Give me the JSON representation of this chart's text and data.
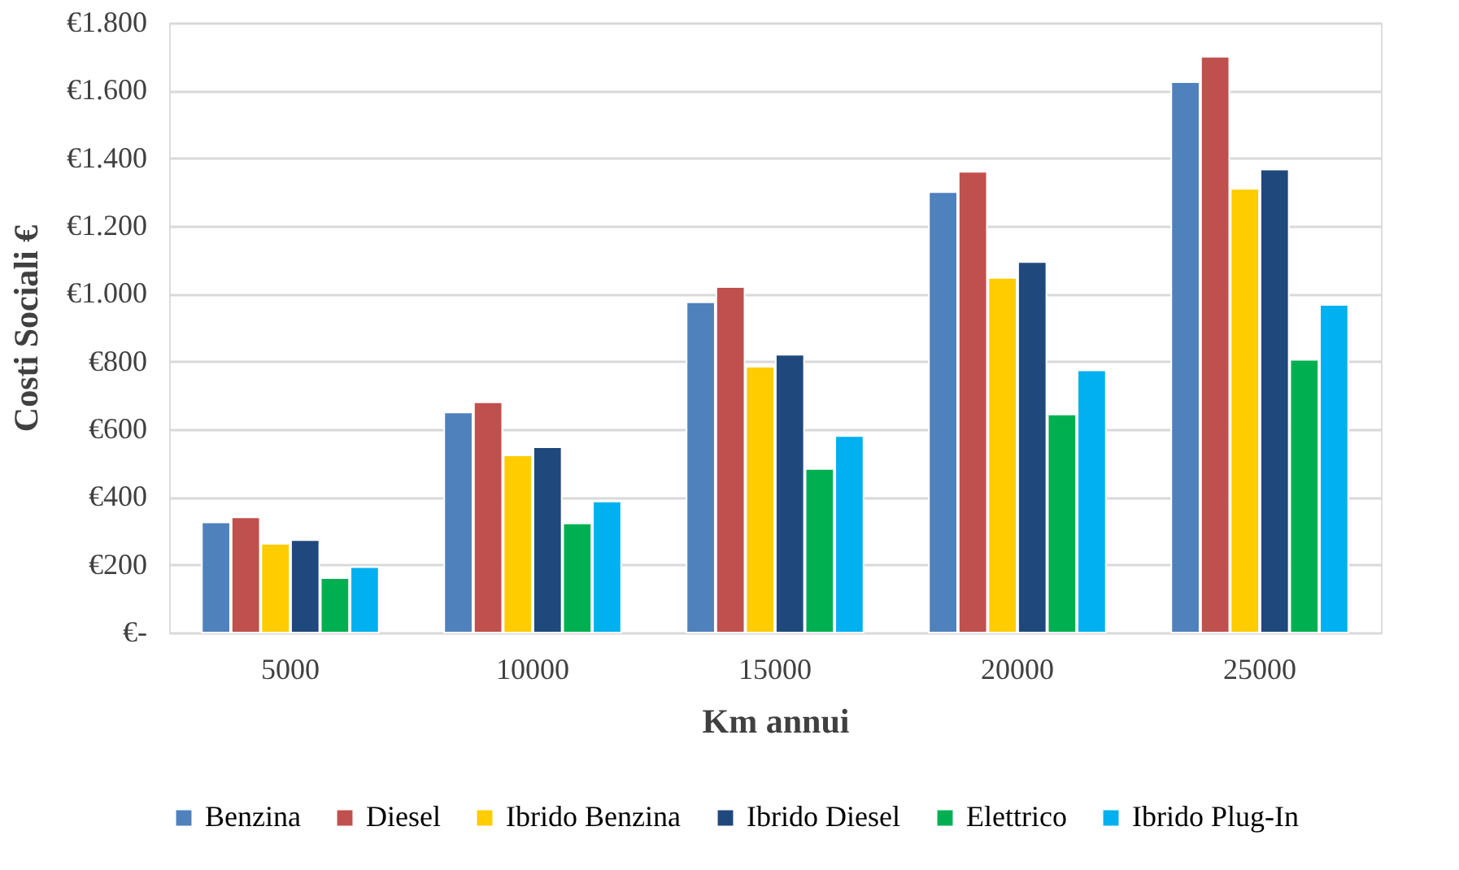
{
  "chart_data": {
    "type": "bar",
    "xlabel": "Km annui",
    "ylabel": "Costi Sociali €",
    "categories": [
      "5000",
      "10000",
      "15000",
      "20000",
      "25000"
    ],
    "series": [
      {
        "name": "Benzina",
        "color": "#4f81bd",
        "values": [
          325,
          650,
          975,
          1300,
          1625
        ]
      },
      {
        "name": "Diesel",
        "color": "#c0504d",
        "values": [
          340,
          680,
          1020,
          1360,
          1700
        ]
      },
      {
        "name": "Ibrido Benzina",
        "color": "#ffcc00",
        "values": [
          262,
          523,
          785,
          1047,
          1310
        ]
      },
      {
        "name": "Ibrido Diesel",
        "color": "#1f497d",
        "values": [
          273,
          547,
          820,
          1094,
          1367
        ]
      },
      {
        "name": "Elettrico",
        "color": "#00b050",
        "values": [
          161,
          322,
          483,
          644,
          805
        ]
      },
      {
        "name": "Ibrido Plug-In",
        "color": "#00b0f0",
        "values": [
          193,
          387,
          580,
          774,
          967
        ]
      }
    ],
    "ylim": [
      0,
      1800
    ],
    "yticks": [
      {
        "value": 0,
        "label": "€-"
      },
      {
        "value": 200,
        "label": "€200"
      },
      {
        "value": 400,
        "label": "€400"
      },
      {
        "value": 600,
        "label": "€600"
      },
      {
        "value": 800,
        "label": "€800"
      },
      {
        "value": 1000,
        "label": "€1.000"
      },
      {
        "value": 1200,
        "label": "€1.200"
      },
      {
        "value": 1400,
        "label": "€1.400"
      },
      {
        "value": 1600,
        "label": "€1.600"
      },
      {
        "value": 1800,
        "label": "€1.800"
      }
    ],
    "grid": "y",
    "legend": "bottom"
  }
}
